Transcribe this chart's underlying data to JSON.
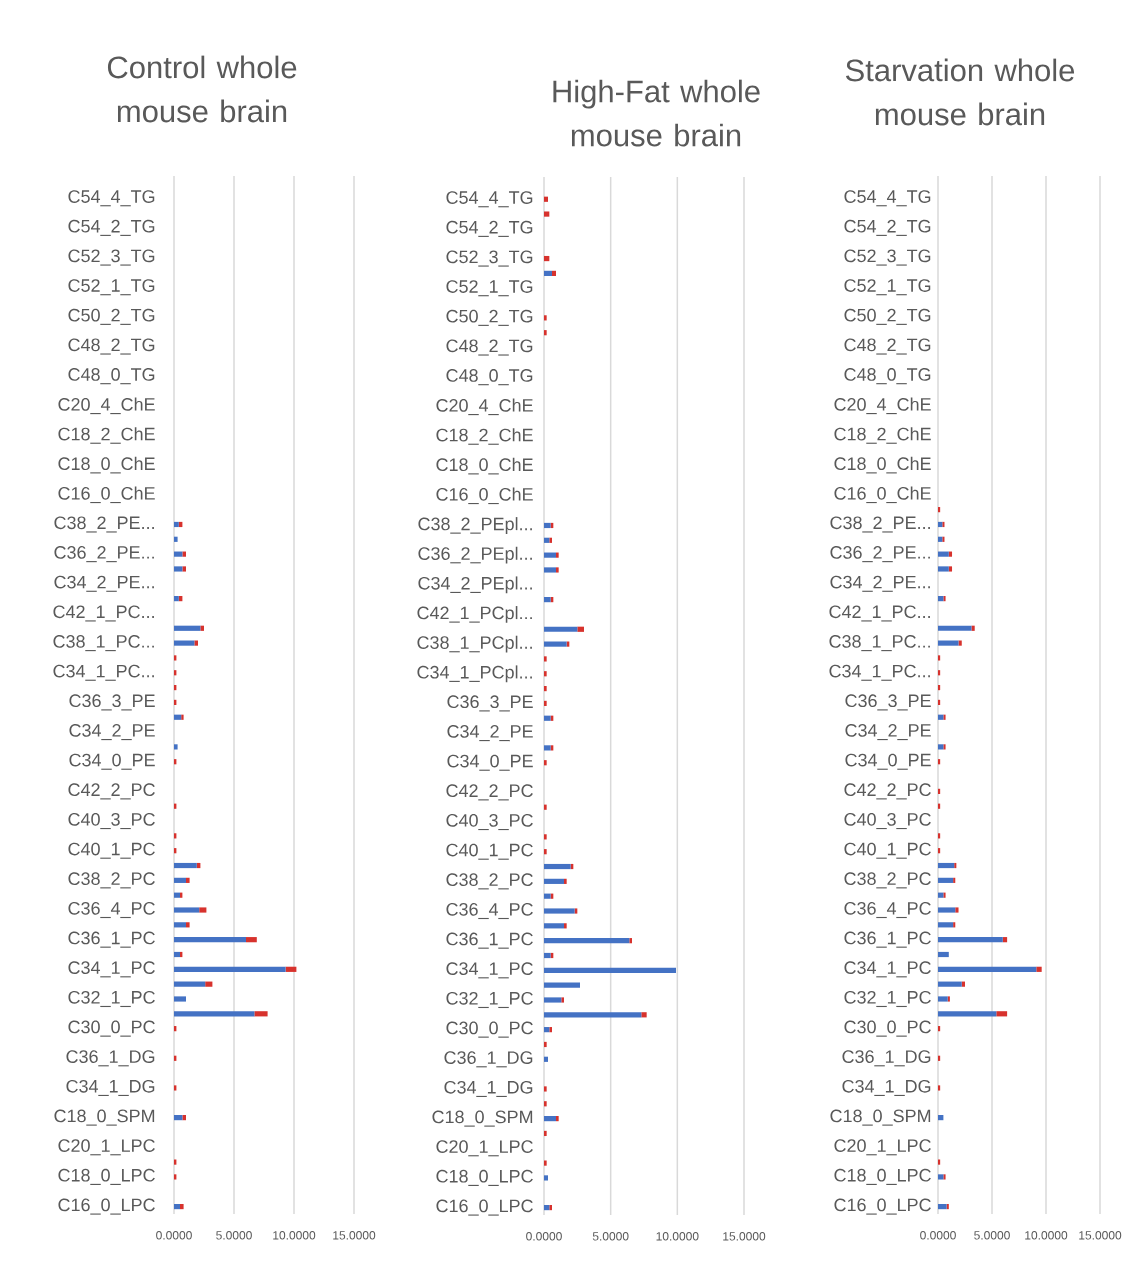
{
  "chart_data": [
    {
      "type": "bar",
      "orientation": "horizontal",
      "stacked": true,
      "title": "Control whole mouse brain",
      "grid": "x",
      "xlim": [
        0,
        15
      ],
      "xticks": [
        {
          "value": 0,
          "label": "0.0000"
        },
        {
          "value": 5,
          "label": "5.0000"
        },
        {
          "value": 10,
          "label": "10.0000"
        },
        {
          "value": 15,
          "label": "15.0000"
        }
      ],
      "categories": [
        null,
        "C54_4_TG",
        null,
        "C54_2_TG",
        null,
        "C52_3_TG",
        null,
        "C52_1_TG",
        null,
        "C50_2_TG",
        null,
        "C48_2_TG",
        null,
        "C48_0_TG",
        null,
        "C20_4_ChE",
        null,
        "C18_2_ChE",
        null,
        "C18_0_ChE",
        null,
        "C16_0_ChE",
        null,
        "C38_2_PE...",
        null,
        "C36_2_PE...",
        null,
        "C34_2_PE...",
        null,
        "C42_1_PC...",
        null,
        "C38_1_PC...",
        null,
        "C34_1_PC...",
        null,
        "C36_3_PE",
        null,
        "C34_2_PE",
        null,
        "C34_0_PE",
        null,
        "C42_2_PC",
        null,
        "C40_3_PC",
        null,
        "C40_1_PC",
        null,
        "C38_2_PC",
        null,
        "C36_4_PC",
        null,
        "C36_1_PC",
        null,
        "C34_1_PC",
        null,
        "C32_1_PC",
        null,
        "C30_0_PC",
        null,
        "C36_1_DG",
        null,
        "C34_1_DG",
        null,
        "C18_0_SPM",
        null,
        "C20_1_LPC",
        null,
        "C18_0_LPC",
        null,
        "C16_0_LPC"
      ],
      "series": [
        {
          "color": "#4472c4",
          "values": [
            0,
            0,
            0,
            0,
            0,
            0,
            0,
            0,
            0,
            0,
            0,
            0,
            0,
            0,
            0,
            0,
            0,
            0,
            0,
            0,
            0,
            0,
            0,
            0.4,
            0.3,
            0.7,
            0.7,
            0,
            0.4,
            0,
            2.2,
            1.7,
            0,
            0,
            0,
            0,
            0.6,
            0,
            0.3,
            0,
            0,
            0,
            0,
            0,
            0,
            0,
            1.9,
            1.0,
            0.5,
            2.1,
            1.0,
            6.0,
            0.5,
            9.3,
            2.6,
            1.0,
            6.7,
            0,
            0,
            0,
            0,
            0,
            0,
            0.7,
            0,
            0,
            0,
            0,
            0,
            0.5
          ]
        },
        {
          "color": "#d7322d",
          "values": [
            0,
            0,
            0,
            0,
            0,
            0,
            0,
            0,
            0,
            0,
            0,
            0,
            0,
            0,
            0,
            0,
            0,
            0,
            0,
            0,
            0,
            0,
            0,
            0.3,
            0,
            0.3,
            0.3,
            0,
            0.3,
            0,
            0.3,
            0.3,
            0.2,
            0.2,
            0.2,
            0.2,
            0.2,
            0,
            0,
            0.2,
            0,
            0,
            0.2,
            0,
            0.2,
            0.2,
            0.3,
            0.3,
            0.2,
            0.6,
            0.3,
            0.9,
            0.2,
            0.9,
            0.6,
            0,
            1.1,
            0.2,
            0,
            0.2,
            0,
            0.2,
            0,
            0.3,
            0,
            0,
            0.2,
            0.2,
            0,
            0.3
          ]
        }
      ]
    },
    {
      "type": "bar",
      "orientation": "horizontal",
      "stacked": true,
      "title": "High-Fat whole mouse brain",
      "grid": "x",
      "xlim": [
        0,
        15
      ],
      "xticks": [
        {
          "value": 0,
          "label": "0.0000"
        },
        {
          "value": 5,
          "label": "5.0000"
        },
        {
          "value": 10,
          "label": "10.0000"
        },
        {
          "value": 15,
          "label": "15.0000"
        }
      ],
      "categories": [
        null,
        "C54_4_TG",
        null,
        "C54_2_TG",
        null,
        "C52_3_TG",
        null,
        "C52_1_TG",
        null,
        "C50_2_TG",
        null,
        "C48_2_TG",
        null,
        "C48_0_TG",
        null,
        "C20_4_ChE",
        null,
        "C18_2_ChE",
        null,
        "C18_0_ChE",
        null,
        "C16_0_ChE",
        null,
        "C38_2_PEpl...",
        null,
        "C36_2_PEpl...",
        null,
        "C34_2_PEpl...",
        null,
        "C42_1_PCpl...",
        null,
        "C38_1_PCpl...",
        null,
        "C34_1_PCpl...",
        null,
        "C36_3_PE",
        null,
        "C34_2_PE",
        null,
        "C34_0_PE",
        null,
        "C42_2_PC",
        null,
        "C40_3_PC",
        null,
        "C40_1_PC",
        null,
        "C38_2_PC",
        null,
        "C36_4_PC",
        null,
        "C36_1_PC",
        null,
        "C34_1_PC",
        null,
        "C32_1_PC",
        null,
        "C30_0_PC",
        null,
        "C36_1_DG",
        null,
        "C34_1_DG",
        null,
        "C18_0_SPM",
        null,
        "C20_1_LPC",
        null,
        "C18_0_LPC",
        null,
        "C16_0_LPC"
      ],
      "series": [
        {
          "color": "#4472c4",
          "values": [
            0,
            0,
            0,
            0,
            0,
            0,
            0.6,
            0,
            0,
            0,
            0,
            0,
            0,
            0,
            0,
            0,
            0,
            0,
            0,
            0,
            0,
            0,
            0,
            0.5,
            0.4,
            0.9,
            0.9,
            0,
            0.5,
            0,
            2.5,
            1.7,
            0,
            0,
            0,
            0,
            0.5,
            0,
            0.5,
            0,
            0,
            0,
            0,
            0,
            0,
            0,
            2.0,
            1.5,
            0.5,
            2.3,
            1.5,
            6.4,
            0.5,
            9.9,
            2.7,
            1.3,
            7.3,
            0.4,
            0,
            0.3,
            0,
            0,
            0,
            0.9,
            0,
            0,
            0,
            0.3,
            0,
            0.4
          ]
        },
        {
          "color": "#d7322d",
          "values": [
            0,
            0.3,
            0.4,
            0,
            0,
            0.4,
            0.3,
            0,
            0,
            0.2,
            0.2,
            0,
            0,
            0,
            0,
            0,
            0,
            0,
            0,
            0,
            0,
            0,
            0,
            0.2,
            0.2,
            0.2,
            0.2,
            0,
            0.2,
            0,
            0.5,
            0.2,
            0.2,
            0.2,
            0.2,
            0.2,
            0.2,
            0,
            0.2,
            0.2,
            0,
            0,
            0.2,
            0,
            0.2,
            0.2,
            0.2,
            0.2,
            0.2,
            0.2,
            0.2,
            0.2,
            0.2,
            0,
            0,
            0.2,
            0.4,
            0.2,
            0.2,
            0,
            0,
            0.2,
            0.2,
            0.2,
            0.2,
            0,
            0.2,
            0,
            0,
            0.2
          ]
        }
      ]
    },
    {
      "type": "bar",
      "orientation": "horizontal",
      "stacked": true,
      "title": "Starvation whole mouse brain",
      "grid": "x",
      "xlim": [
        0,
        15
      ],
      "xticks": [
        {
          "value": 0,
          "label": "0.0000"
        },
        {
          "value": 5,
          "label": "5.0000"
        },
        {
          "value": 10,
          "label": "10.0000"
        },
        {
          "value": 15,
          "label": "15.0000"
        }
      ],
      "categories": [
        null,
        "C54_4_TG",
        null,
        "C54_2_TG",
        null,
        "C52_3_TG",
        null,
        "C52_1_TG",
        null,
        "C50_2_TG",
        null,
        "C48_2_TG",
        null,
        "C48_0_TG",
        null,
        "C20_4_ChE",
        null,
        "C18_2_ChE",
        null,
        "C18_0_ChE",
        null,
        "C16_0_ChE",
        null,
        "C38_2_PE...",
        null,
        "C36_2_PE...",
        null,
        "C34_2_PE...",
        null,
        "C42_1_PC...",
        null,
        "C38_1_PC...",
        null,
        "C34_1_PC...",
        null,
        "C36_3_PE",
        null,
        "C34_2_PE",
        null,
        "C34_0_PE",
        null,
        "C42_2_PC",
        null,
        "C40_3_PC",
        null,
        "C40_1_PC",
        null,
        "C38_2_PC",
        null,
        "C36_4_PC",
        null,
        "C36_1_PC",
        null,
        "C34_1_PC",
        null,
        "C32_1_PC",
        null,
        "C30_0_PC",
        null,
        "C36_1_DG",
        null,
        "C34_1_DG",
        null,
        "C18_0_SPM",
        null,
        "C20_1_LPC",
        null,
        "C18_0_LPC",
        null,
        "C16_0_LPC"
      ],
      "series": [
        {
          "color": "#4472c4",
          "values": [
            0,
            0,
            0,
            0,
            0,
            0,
            0,
            0,
            0,
            0,
            0,
            0,
            0,
            0,
            0,
            0,
            0,
            0,
            0,
            0,
            0,
            0,
            0,
            0.4,
            0.4,
            1.0,
            1.0,
            0,
            0.5,
            0,
            3.1,
            1.9,
            0,
            0,
            0,
            0,
            0.5,
            0,
            0.5,
            0,
            0,
            0,
            0,
            0,
            0,
            0,
            1.5,
            1.4,
            0.5,
            1.6,
            1.4,
            6.0,
            1.0,
            9.1,
            2.2,
            0.9,
            5.4,
            0,
            0,
            0,
            0,
            0,
            0,
            0.5,
            0,
            0,
            0,
            0.5,
            0,
            0.8
          ]
        },
        {
          "color": "#d7322d",
          "values": [
            0,
            0,
            0,
            0,
            0,
            0,
            0,
            0,
            0,
            0,
            0,
            0,
            0,
            0,
            0,
            0,
            0,
            0,
            0,
            0,
            0,
            0,
            0.2,
            0.2,
            0.2,
            0.3,
            0.3,
            0,
            0.2,
            0,
            0.3,
            0.3,
            0.2,
            0.2,
            0.2,
            0.2,
            0.2,
            0,
            0.2,
            0.2,
            0,
            0.2,
            0.2,
            0,
            0.2,
            0.2,
            0.2,
            0.2,
            0.2,
            0.3,
            0.2,
            0.4,
            0,
            0.5,
            0.3,
            0.2,
            1.0,
            0.2,
            0,
            0.2,
            0,
            0.2,
            0,
            0,
            0,
            0,
            0.2,
            0.2,
            0,
            0.2
          ]
        }
      ]
    }
  ]
}
